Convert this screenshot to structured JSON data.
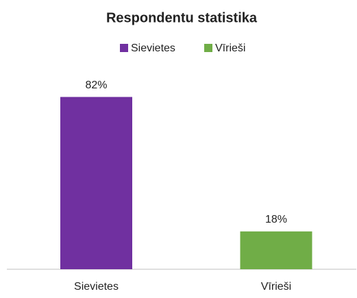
{
  "chart_data": {
    "type": "bar",
    "title": "Respondentu statistika",
    "categories": [
      "Sievietes",
      "Vīrieši"
    ],
    "values": [
      82,
      18
    ],
    "value_labels": [
      "82%",
      "18%"
    ],
    "colors": [
      "#7030a0",
      "#70ad47"
    ],
    "ylim": [
      0,
      90
    ],
    "legend": "top"
  }
}
